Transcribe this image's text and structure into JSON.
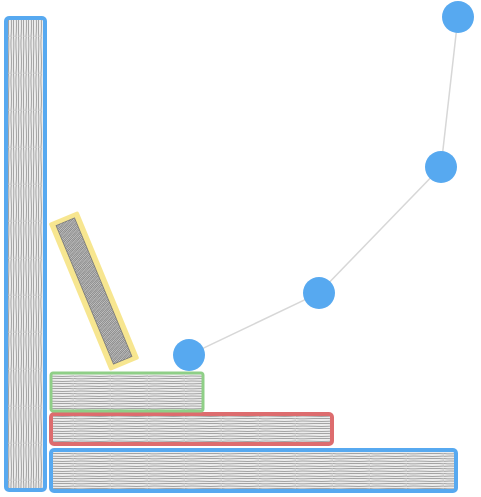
{
  "colors": {
    "background": "#ffffff",
    "blue": "#57a9f0",
    "green": "#8fcf87",
    "red": "#dd6c6e",
    "yellow": "#f7e690",
    "sketch_fill": "#e9e9e9",
    "sketch_stroke": "#8c8c8c",
    "connector": "#d7d7d7"
  },
  "elements": {
    "vertical_bar": {
      "outline_color": "blue"
    },
    "base_bar": {
      "outline_color": "blue"
    },
    "middle_bar": {
      "outline_color": "red"
    },
    "top_bar": {
      "outline_color": "green"
    },
    "tilted_bar": {
      "outline_color": "yellow"
    }
  },
  "nodes": {
    "count": 4,
    "color": "blue",
    "connected_by_line": true
  }
}
